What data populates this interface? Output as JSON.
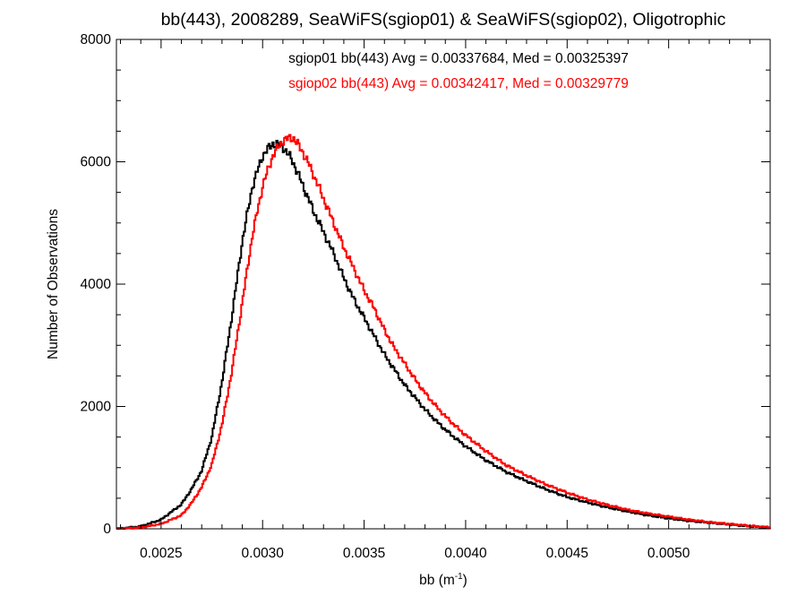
{
  "chart_data": {
    "type": "line",
    "title": "bb(443), 2008289, SeaWiFS(sgiop01) & SeaWiFS(sgiop02), Oligotrophic",
    "xlabel": "bb (m",
    "xlabel_sup": "-1",
    "xlabel_close": ")",
    "ylabel": "Number of Observations",
    "xlim": [
      0.00228,
      0.0055
    ],
    "ylim": [
      0,
      8000
    ],
    "x_ticks": [
      {
        "value": 0.0025,
        "label": "0.0025"
      },
      {
        "value": 0.003,
        "label": "0.0030"
      },
      {
        "value": 0.0035,
        "label": "0.0035"
      },
      {
        "value": 0.004,
        "label": "0.0040"
      },
      {
        "value": 0.0045,
        "label": "0.0045"
      },
      {
        "value": 0.005,
        "label": "0.0050"
      }
    ],
    "y_ticks": [
      {
        "value": 0,
        "label": "0"
      },
      {
        "value": 2000,
        "label": "2000"
      },
      {
        "value": 4000,
        "label": "4000"
      },
      {
        "value": 6000,
        "label": "6000"
      },
      {
        "value": 8000,
        "label": "8000"
      }
    ],
    "annotations": [
      {
        "text": "sgiop01 bb(443) Avg = 0.00337684, Med = 0.00325397",
        "color": "#000000"
      },
      {
        "text": "sgiop02 bb(443) Avg = 0.00342417, Med = 0.00329779",
        "color": "#ff0000"
      }
    ],
    "series": [
      {
        "color": "#000000",
        "x": [
          0.00228,
          0.0024,
          0.0025,
          0.0026,
          0.00265,
          0.0027,
          0.00275,
          0.0028,
          0.00285,
          0.0029,
          0.00295,
          0.003,
          0.00305,
          0.0031,
          0.00315,
          0.0032,
          0.00325,
          0.0033,
          0.00335,
          0.0034,
          0.00345,
          0.0035,
          0.00355,
          0.0036,
          0.00365,
          0.0037,
          0.00375,
          0.0038,
          0.00385,
          0.0039,
          0.00395,
          0.004,
          0.0041,
          0.0042,
          0.0043,
          0.0044,
          0.0045,
          0.0046,
          0.0047,
          0.0048,
          0.0049,
          0.005,
          0.0051,
          0.0052,
          0.0053,
          0.0054,
          0.0055
        ],
        "y": [
          0,
          40,
          150,
          400,
          650,
          950,
          1500,
          2400,
          3500,
          4700,
          5600,
          6100,
          6300,
          6250,
          6000,
          5600,
          5200,
          4850,
          4500,
          4100,
          3750,
          3450,
          3150,
          2850,
          2600,
          2350,
          2150,
          1950,
          1780,
          1620,
          1480,
          1350,
          1120,
          930,
          780,
          640,
          520,
          430,
          350,
          280,
          220,
          170,
          130,
          100,
          70,
          40,
          20
        ]
      },
      {
        "color": "#ff0000",
        "x": [
          0.00228,
          0.0024,
          0.0025,
          0.0026,
          0.00265,
          0.0027,
          0.00275,
          0.0028,
          0.00285,
          0.0029,
          0.00295,
          0.003,
          0.00305,
          0.0031,
          0.00315,
          0.0032,
          0.00325,
          0.0033,
          0.00335,
          0.0034,
          0.00345,
          0.0035,
          0.00355,
          0.0036,
          0.00365,
          0.0037,
          0.00375,
          0.0038,
          0.00385,
          0.0039,
          0.00395,
          0.004,
          0.0041,
          0.0042,
          0.0043,
          0.0044,
          0.0045,
          0.0046,
          0.0047,
          0.0048,
          0.0049,
          0.005,
          0.0051,
          0.0052,
          0.0053,
          0.0054,
          0.0055
        ],
        "y": [
          0,
          20,
          80,
          220,
          420,
          680,
          1050,
          1700,
          2600,
          3700,
          4800,
          5600,
          6100,
          6350,
          6400,
          6150,
          5800,
          5400,
          5000,
          4600,
          4250,
          3900,
          3600,
          3250,
          2950,
          2700,
          2450,
          2220,
          2020,
          1840,
          1680,
          1530,
          1270,
          1040,
          870,
          720,
          590,
          480,
          390,
          310,
          250,
          200,
          150,
          110,
          80,
          50,
          25
        ]
      }
    ],
    "grid": false,
    "legend": "none"
  }
}
